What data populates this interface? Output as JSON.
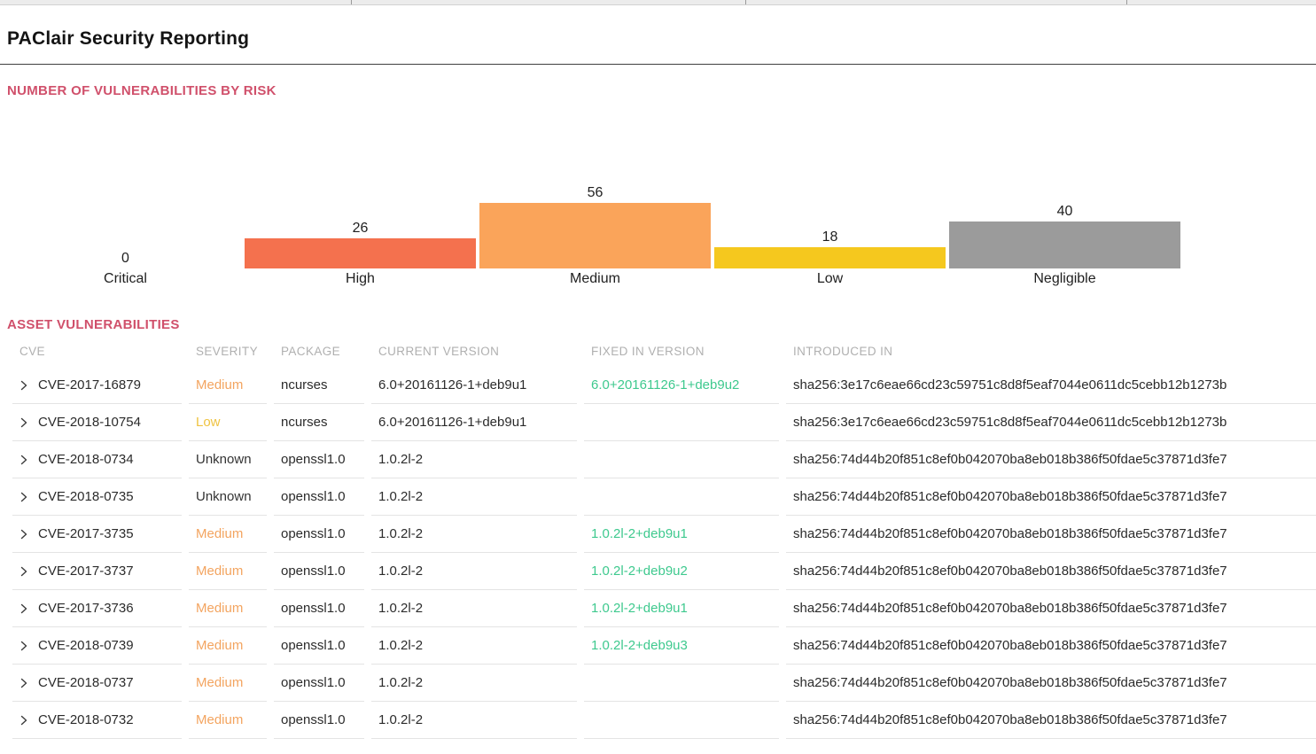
{
  "page": {
    "title": "PAClair Security Reporting"
  },
  "sections": {
    "chart_heading": "NUMBER OF VULNERABILITIES BY RISK",
    "table_heading": "ASSET VULNERABILITIES"
  },
  "colors": {
    "heading_accent": "#D0506B",
    "fixed_version_green": "#3EC98E",
    "severity": {
      "Medium": "#F3A45F",
      "Low": "#EFC341",
      "Unknown": "#333333"
    }
  },
  "chart_data": {
    "type": "bar",
    "title": "NUMBER OF VULNERABILITIES BY RISK",
    "categories": [
      "Critical",
      "High",
      "Medium",
      "Low",
      "Negligible"
    ],
    "values": [
      0,
      26,
      56,
      18,
      40
    ],
    "bar_colors": [
      null,
      "#F4714E",
      "#FAA45A",
      "#F5C81E",
      "#9B9B9B"
    ],
    "ylim": [
      0,
      56
    ],
    "grid": false,
    "value_labels": true,
    "xlabel": "",
    "ylabel": ""
  },
  "table": {
    "columns": [
      "CVE",
      "SEVERITY",
      "PACKAGE",
      "CURRENT VERSION",
      "FIXED IN VERSION",
      "INTRODUCED IN"
    ],
    "rows": [
      {
        "cve": "CVE-2017-16879",
        "severity": "Medium",
        "package": "ncurses",
        "current_version": "6.0+20161126-1+deb9u1",
        "fixed_in_version": "6.0+20161126-1+deb9u2",
        "introduced_in": "sha256:3e17c6eae66cd23c59751c8d8f5eaf7044e0611dc5cebb12b1273b"
      },
      {
        "cve": "CVE-2018-10754",
        "severity": "Low",
        "package": "ncurses",
        "current_version": "6.0+20161126-1+deb9u1",
        "fixed_in_version": "",
        "introduced_in": "sha256:3e17c6eae66cd23c59751c8d8f5eaf7044e0611dc5cebb12b1273b"
      },
      {
        "cve": "CVE-2018-0734",
        "severity": "Unknown",
        "package": "openssl1.0",
        "current_version": "1.0.2l-2",
        "fixed_in_version": "",
        "introduced_in": "sha256:74d44b20f851c8ef0b042070ba8eb018b386f50fdae5c37871d3fe7"
      },
      {
        "cve": "CVE-2018-0735",
        "severity": "Unknown",
        "package": "openssl1.0",
        "current_version": "1.0.2l-2",
        "fixed_in_version": "",
        "introduced_in": "sha256:74d44b20f851c8ef0b042070ba8eb018b386f50fdae5c37871d3fe7"
      },
      {
        "cve": "CVE-2017-3735",
        "severity": "Medium",
        "package": "openssl1.0",
        "current_version": "1.0.2l-2",
        "fixed_in_version": "1.0.2l-2+deb9u1",
        "introduced_in": "sha256:74d44b20f851c8ef0b042070ba8eb018b386f50fdae5c37871d3fe7"
      },
      {
        "cve": "CVE-2017-3737",
        "severity": "Medium",
        "package": "openssl1.0",
        "current_version": "1.0.2l-2",
        "fixed_in_version": "1.0.2l-2+deb9u2",
        "introduced_in": "sha256:74d44b20f851c8ef0b042070ba8eb018b386f50fdae5c37871d3fe7"
      },
      {
        "cve": "CVE-2017-3736",
        "severity": "Medium",
        "package": "openssl1.0",
        "current_version": "1.0.2l-2",
        "fixed_in_version": "1.0.2l-2+deb9u1",
        "introduced_in": "sha256:74d44b20f851c8ef0b042070ba8eb018b386f50fdae5c37871d3fe7"
      },
      {
        "cve": "CVE-2018-0739",
        "severity": "Medium",
        "package": "openssl1.0",
        "current_version": "1.0.2l-2",
        "fixed_in_version": "1.0.2l-2+deb9u3",
        "introduced_in": "sha256:74d44b20f851c8ef0b042070ba8eb018b386f50fdae5c37871d3fe7"
      },
      {
        "cve": "CVE-2018-0737",
        "severity": "Medium",
        "package": "openssl1.0",
        "current_version": "1.0.2l-2",
        "fixed_in_version": "",
        "introduced_in": "sha256:74d44b20f851c8ef0b042070ba8eb018b386f50fdae5c37871d3fe7"
      },
      {
        "cve": "CVE-2018-0732",
        "severity": "Medium",
        "package": "openssl1.0",
        "current_version": "1.0.2l-2",
        "fixed_in_version": "",
        "introduced_in": "sha256:74d44b20f851c8ef0b042070ba8eb018b386f50fdae5c37871d3fe7"
      }
    ]
  }
}
